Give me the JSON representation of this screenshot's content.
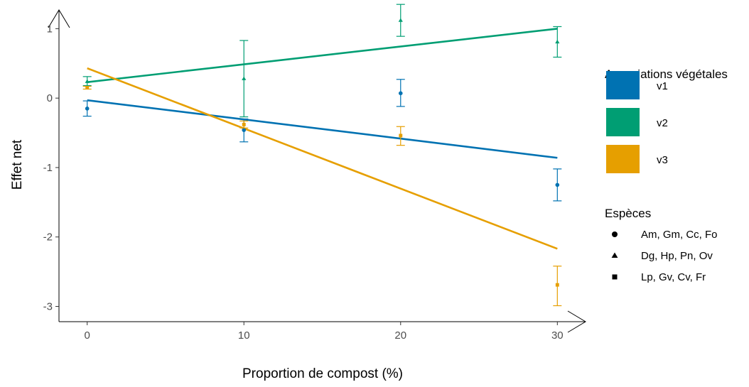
{
  "chart_data": {
    "type": "scatter",
    "xlabel": "Proportion de compost (%)",
    "ylabel": "Effet net",
    "xlim": [
      -1.8,
      31.8
    ],
    "ylim": [
      -3.22,
      1.27
    ],
    "xticks": [
      0,
      10,
      20,
      30
    ],
    "yticks": [
      -3,
      -2,
      -1,
      0,
      1
    ],
    "grid": false,
    "legend_placement": "right",
    "series": [
      {
        "name": "v1",
        "color": "#0072B2",
        "shape": "circle",
        "points": [
          {
            "x": 0,
            "y": -0.15,
            "ymin": -0.26,
            "ymax": -0.04
          },
          {
            "x": 10,
            "y": -0.46,
            "ymin": -0.63,
            "ymax": -0.3
          },
          {
            "x": 20,
            "y": 0.07,
            "ymin": -0.12,
            "ymax": 0.27
          },
          {
            "x": 30,
            "y": -1.25,
            "ymin": -1.48,
            "ymax": -1.02
          }
        ],
        "fit": {
          "x": [
            0,
            30
          ],
          "y": [
            -0.03,
            -0.86
          ]
        }
      },
      {
        "name": "v2",
        "color": "#009E73",
        "shape": "triangle",
        "points": [
          {
            "x": 0,
            "y": 0.24,
            "ymin": 0.18,
            "ymax": 0.31
          },
          {
            "x": 10,
            "y": 0.28,
            "ymin": -0.27,
            "ymax": 0.83
          },
          {
            "x": 20,
            "y": 1.12,
            "ymin": 0.89,
            "ymax": 1.35
          },
          {
            "x": 30,
            "y": 0.81,
            "ymin": 0.59,
            "ymax": 1.03
          }
        ],
        "fit": {
          "x": [
            0,
            30
          ],
          "y": [
            0.23,
            1.0
          ]
        }
      },
      {
        "name": "v3",
        "color": "#E69F00",
        "shape": "square",
        "points": [
          {
            "x": 0,
            "y": 0.15,
            "ymin": 0.13,
            "ymax": 0.17
          },
          {
            "x": 10,
            "y": -0.38,
            "ymin": -0.43,
            "ymax": -0.33
          },
          {
            "x": 20,
            "y": -0.54,
            "ymin": -0.68,
            "ymax": -0.41
          },
          {
            "x": 30,
            "y": -2.69,
            "ymin": -2.99,
            "ymax": -2.42
          }
        ],
        "fit": {
          "x": [
            0,
            30
          ],
          "y": [
            0.43,
            -2.17
          ]
        }
      }
    ],
    "legend_color": {
      "title": "Associations végétales",
      "entries": [
        {
          "label": "v1",
          "color": "#0072B2"
        },
        {
          "label": "v2",
          "color": "#009E73"
        },
        {
          "label": "v3",
          "color": "#E69F00"
        }
      ]
    },
    "legend_shape": {
      "title": "Espèces",
      "entries": [
        {
          "label": "Am, Gm, Cc, Fo",
          "shape": "circle"
        },
        {
          "label": "Dg, Hp, Pn, Ov",
          "shape": "triangle"
        },
        {
          "label": "Lp, Gv, Cv, Fr",
          "shape": "square"
        }
      ]
    }
  }
}
